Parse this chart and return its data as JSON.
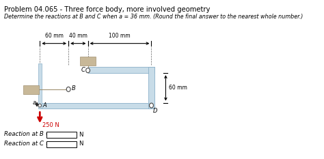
{
  "title": "Problem 04.065 - Three force body, more involved geometry",
  "subtitle": "Determine the reactions at B and C when a = 36 mm. (Round the final answer to the nearest whole number.)",
  "dim_60": "60 mm",
  "dim_40": "40 mm",
  "dim_100": "100 mm",
  "dim_60v": "60 mm",
  "label_A": "A",
  "label_B": "B",
  "label_C": "C",
  "label_D": "D",
  "label_a": "a",
  "force_label": "250 N",
  "reaction_B": "Reaction at B =",
  "reaction_C": "Reaction at C =",
  "unit_N": "N",
  "bg_color": "#ffffff",
  "frame_fill": "#c8dce8",
  "frame_edge": "#8ab0c8",
  "support_fill": "#c8b898",
  "support_edge": "#a09070",
  "text_color": "#000000",
  "force_color": "#cc0000",
  "pin_fill": "#ffffff",
  "pin_edge": "#555555"
}
